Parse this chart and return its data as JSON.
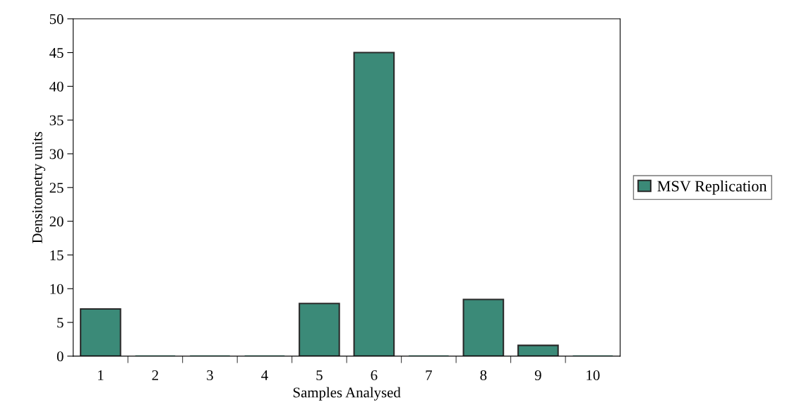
{
  "chart_data": {
    "type": "bar",
    "xlabel": "Samples Analysed",
    "ylabel": "Densitometry units",
    "categories": [
      "1",
      "2",
      "3",
      "4",
      "5",
      "6",
      "7",
      "8",
      "9",
      "10"
    ],
    "series": [
      {
        "name": "MSV Replication",
        "color": "#3b8a78",
        "values": [
          7,
          0,
          0,
          0,
          7.8,
          45,
          0,
          8.4,
          1.6,
          0
        ]
      }
    ],
    "ylim": [
      0,
      50
    ],
    "yticks": [
      0,
      5,
      10,
      15,
      20,
      25,
      30,
      35,
      40,
      45,
      50
    ],
    "grid": false,
    "legend": "right"
  }
}
